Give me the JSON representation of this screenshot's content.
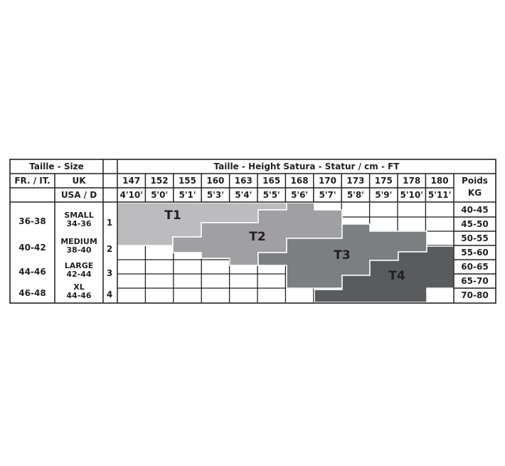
{
  "header": {
    "size_title": "Taille - Size",
    "height_title": "Taille - Height Satura - Statur / cm - FT",
    "fr_it": "FR. / IT.",
    "uk": "UK",
    "usa_d": "USA / D",
    "weight_title": "Poids",
    "weight_unit": "KG"
  },
  "heights_cm": [
    "147",
    "152",
    "155",
    "160",
    "163",
    "165",
    "168",
    "170",
    "173",
    "175",
    "178",
    "180"
  ],
  "heights_ft": [
    "4'10'",
    "5'0'",
    "5'1'",
    "5'3'",
    "5'4'",
    "5'5'",
    "5'6'",
    "5'7'",
    "5'8'",
    "5'9'",
    "5'10'",
    "5'11'"
  ],
  "weights_kg": [
    "40-45",
    "45-50",
    "50-55",
    "55-60",
    "60-65",
    "65-70",
    "70-80"
  ],
  "sizes": [
    {
      "fr_it": "36-38",
      "uk_name": "SMALL",
      "uk_range": "34-36",
      "num": "1"
    },
    {
      "fr_it": "40-42",
      "uk_name": "MEDIUM",
      "uk_range": "38-40",
      "num": "2"
    },
    {
      "fr_it": "44-46",
      "uk_name": "LARGE",
      "uk_range": "42-44",
      "num": "3"
    },
    {
      "fr_it": "46-48",
      "uk_name": "XL",
      "uk_range": "44-46",
      "num": "4"
    }
  ],
  "zones": [
    {
      "label": "T1",
      "color": "#bcbcbe"
    },
    {
      "label": "T2",
      "color": "#a0a0a3"
    },
    {
      "label": "T3",
      "color": "#7b7f80"
    },
    {
      "label": "T4",
      "color": "#595b5e"
    }
  ],
  "colors": {
    "line": "#231f20",
    "background": "#ffffff"
  }
}
